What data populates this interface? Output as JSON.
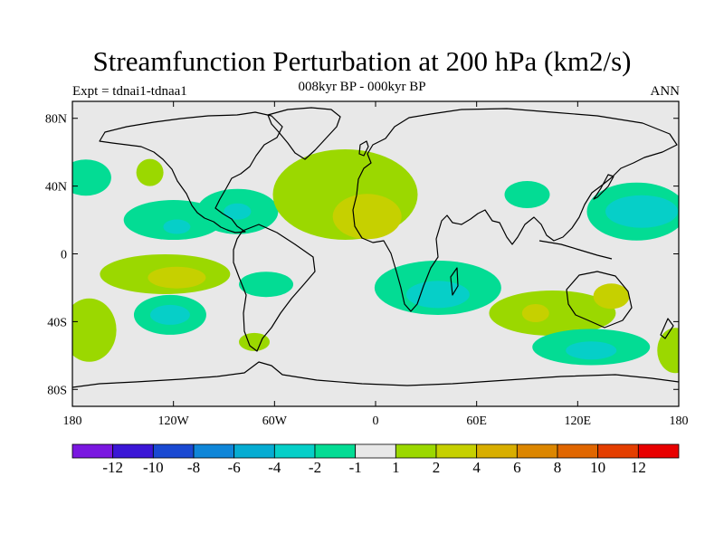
{
  "title": "Streamfunction Perturbation at 200 hPa (km2/s)",
  "subtitle": "008kyr BP - 000kyr BP",
  "left_label": "Expt = tdnai1-tdnaa1",
  "right_label": "ANN",
  "chart_data": {
    "type": "heatmap",
    "title": "Streamfunction Perturbation at 200 hPa (km2/s)",
    "variable": "200 hPa streamfunction perturbation",
    "units": "km2/s",
    "period": "008kyr BP - 000kyr BP",
    "season": "ANN",
    "lon_range": [
      -180,
      180
    ],
    "lat_range": [
      -90,
      90
    ],
    "lat_ticks": [
      "80N",
      "40N",
      "0",
      "40S",
      "80S"
    ],
    "lat_tick_values": [
      80,
      40,
      0,
      -40,
      -80
    ],
    "lon_ticks": [
      "180",
      "120W",
      "60W",
      "0",
      "60E",
      "120E",
      "180"
    ],
    "lon_tick_values": [
      -180,
      -120,
      -60,
      0,
      60,
      120,
      180
    ],
    "colorbar": {
      "colors": [
        "#7a17e0",
        "#3b16d6",
        "#1a49d2",
        "#0f86d8",
        "#06acd2",
        "#06cfc8",
        "#03dc94",
        "#e8e8e8",
        "#9bd800",
        "#c6d000",
        "#d8ae00",
        "#dc8600",
        "#e06600",
        "#e43e00",
        "#e80000"
      ],
      "labels": [
        "-12",
        "-10",
        "-8",
        "-6",
        "-4",
        "-2",
        "-1",
        "1",
        "2",
        "4",
        "6",
        "8",
        "10",
        "12"
      ],
      "levels": [
        -12,
        -10,
        -8,
        -6,
        -4,
        -2,
        -1,
        1,
        2,
        4,
        6,
        8,
        10,
        12
      ]
    },
    "anomalies": [
      {
        "lon": -172,
        "lat": 45,
        "value": -1.5
      },
      {
        "lon": -134,
        "lat": 48,
        "value": 1.5
      },
      {
        "lon": -120,
        "lat": 20,
        "value": -1.5
      },
      {
        "lon": -118,
        "lat": 16,
        "value": -2.2
      },
      {
        "lon": -82,
        "lat": 25,
        "value": -1.5
      },
      {
        "lon": -82,
        "lat": 25,
        "value": -2.2
      },
      {
        "lon": -18,
        "lat": 35,
        "value": 1.5
      },
      {
        "lon": -5,
        "lat": 22,
        "value": 2.5
      },
      {
        "lon": -125,
        "lat": -12,
        "value": 1.5
      },
      {
        "lon": -118,
        "lat": -14,
        "value": 2.5
      },
      {
        "lon": -122,
        "lat": -36,
        "value": -1.5
      },
      {
        "lon": -122,
        "lat": -36,
        "value": -2.5
      },
      {
        "lon": -65,
        "lat": -18,
        "value": -1.5
      },
      {
        "lon": -170,
        "lat": -45,
        "value": 1.5
      },
      {
        "lon": -72,
        "lat": -52,
        "value": 1.5
      },
      {
        "lon": 37,
        "lat": -20,
        "value": -1.5
      },
      {
        "lon": 37,
        "lat": -24,
        "value": -2.5
      },
      {
        "lon": 90,
        "lat": 35,
        "value": -1.5
      },
      {
        "lon": 155,
        "lat": 25,
        "value": -1.5
      },
      {
        "lon": 158,
        "lat": 25,
        "value": -2.8
      },
      {
        "lon": 105,
        "lat": -35,
        "value": 1.5
      },
      {
        "lon": 95,
        "lat": -35,
        "value": 3
      },
      {
        "lon": 140,
        "lat": -25,
        "value": 3
      },
      {
        "lon": 128,
        "lat": -55,
        "value": -1.5
      },
      {
        "lon": 128,
        "lat": -57,
        "value": -2.5
      },
      {
        "lon": 178,
        "lat": -57,
        "value": 1.5
      }
    ]
  }
}
